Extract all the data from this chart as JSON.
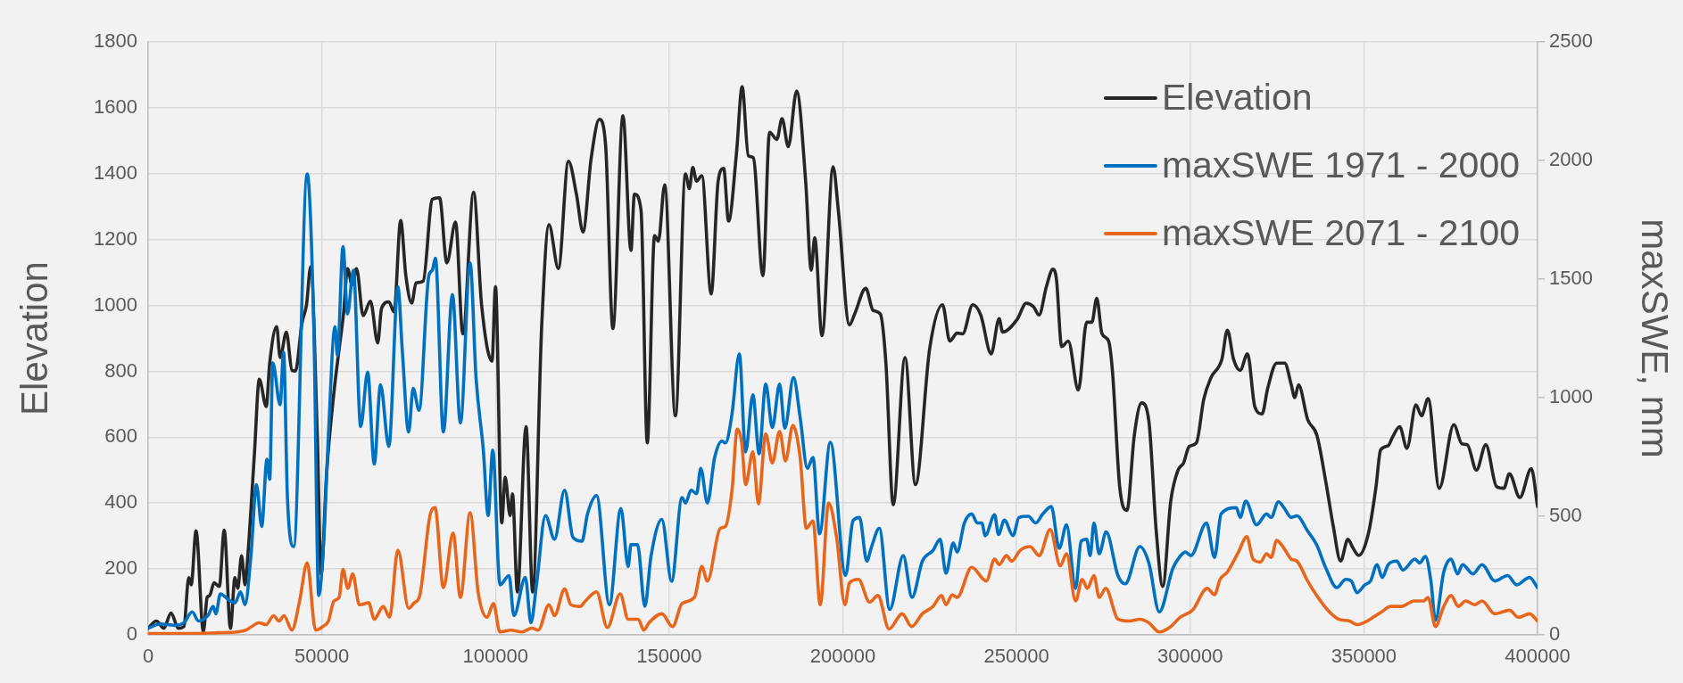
{
  "chart_data": {
    "type": "line",
    "ylabel": "Elevation",
    "y2label": "maxSWE, mm",
    "xlim": [
      0,
      400000
    ],
    "xticks": [
      0,
      50000,
      100000,
      150000,
      200000,
      250000,
      300000,
      350000,
      400000
    ],
    "ylim": [
      0,
      1800
    ],
    "yticks": [
      0,
      200,
      400,
      600,
      800,
      1000,
      1200,
      1400,
      1600,
      1800
    ],
    "y2lim": [
      0,
      2500
    ],
    "y2ticks": [
      0,
      500,
      1000,
      1500,
      2000,
      2500
    ],
    "grid": true,
    "legend": "top right",
    "marker": "none",
    "line_style": "solid",
    "series": [
      {
        "name": "Elevation",
        "color": "#262626",
        "x": [
          0,
          2400,
          4500,
          6600,
          8700,
          10300,
          11700,
          12400,
          13800,
          15900,
          17000,
          17700,
          19000,
          20500,
          21900,
          23700,
          25000,
          25800,
          26900,
          27900,
          28700,
          30600,
          32000,
          34000,
          35000,
          37000,
          38000,
          39800,
          41400,
          42400,
          44300,
          45600,
          46800,
          48700,
          49800,
          51400,
          53500,
          55000,
          56300,
          57400,
          58700,
          60000,
          61900,
          64000,
          66100,
          67200,
          69300,
          70800,
          72700,
          74200,
          75900,
          77100,
          79200,
          81800,
          83900,
          86000,
          88500,
          90600,
          93700,
          96000,
          99000,
          100000,
          101800,
          102800,
          104200,
          104900,
          106300,
          108800,
          110700,
          113300,
          115400,
          118100,
          121000,
          123300,
          125200,
          127500,
          129900,
          131700,
          133800,
          136700,
          139000,
          140000,
          141900,
          143700,
          145800,
          146900,
          148700,
          151800,
          154700,
          155800,
          156800,
          157900,
          159400,
          162100,
          164100,
          165700,
          167100,
          169400,
          171000,
          172800,
          174200,
          177000,
          178900,
          181000,
          182500,
          184300,
          186700,
          189300,
          190900,
          191900,
          194000,
          197200,
          198700,
          201900,
          203400,
          206600,
          208700,
          210800,
          212400,
          214500,
          217900,
          220900,
          225000,
          228700,
          230800,
          232900,
          234500,
          237400,
          239700,
          242700,
          245000,
          246000,
          250200,
          252800,
          254900,
          256500,
          258600,
          260500,
          261500,
          263000,
          264900,
          267800,
          270200,
          271700,
          273100,
          274600,
          276500,
          277600,
          279700,
          281800,
          283900,
          286000,
          288100,
          290200,
          292100,
          294400,
          296500,
          298100,
          299700,
          301800,
          303900,
          306000,
          309100,
          310700,
          312500,
          314400,
          316500,
          318600,
          320700,
          322300,
          324900,
          327200,
          329100,
          330100,
          331200,
          333800,
          336500,
          339100,
          341200,
          343300,
          345400,
          346900,
          348500,
          351400,
          353500,
          354800,
          357000,
          358200,
          360300,
          362400,
          365000,
          366600,
          368500,
          371700,
          375900,
          378200,
          379800,
          382400,
          385100,
          388200,
          390300,
          391900,
          394900,
          398200,
          400000
        ],
        "values": [
          20,
          42,
          20,
          66,
          20,
          25,
          174,
          152,
          316,
          10,
          114,
          119,
          158,
          147,
          318,
          20,
          174,
          141,
          240,
          152,
          240,
          550,
          776,
          693,
          825,
          936,
          842,
          919,
          803,
          801,
          947,
          1002,
          1118,
          605,
          185,
          494,
          737,
          869,
          980,
          1112,
          1063,
          1112,
          969,
          1013,
          886,
          991,
          1011,
          980,
          1258,
          1090,
          1007,
          1068,
          1074,
          1322,
          1327,
          1129,
          1253,
          914,
          1344,
          1002,
          831,
          1057,
          340,
          478,
          362,
          428,
          130,
          632,
          130,
          936,
          1245,
          1112,
          1438,
          1338,
          1223,
          1443,
          1565,
          1487,
          930,
          1576,
          1167,
          1338,
          1289,
          583,
          1212,
          1195,
          1366,
          665,
          1399,
          1355,
          1419,
          1377,
          1394,
          1035,
          1377,
          1416,
          1256,
          1465,
          1664,
          1454,
          1449,
          1090,
          1526,
          1504,
          1567,
          1482,
          1651,
          1377,
          1107,
          1206,
          908,
          1421,
          1289,
          941,
          974,
          1052,
          985,
          974,
          825,
          395,
          842,
          456,
          869,
          1002,
          892,
          916,
          914,
          1002,
          971,
          853,
          960,
          919,
          958,
          1007,
          996,
          971,
          1057,
          1110,
          1079,
          875,
          892,
          743,
          949,
          949,
          1022,
          914,
          892,
          803,
          450,
          378,
          605,
          704,
          649,
          318,
          147,
          406,
          500,
          522,
          572,
          583,
          715,
          781,
          836,
          925,
          836,
          803,
          853,
          693,
          671,
          748,
          825,
          825,
          759,
          720,
          759,
          654,
          605,
          461,
          329,
          224,
          290,
          263,
          241,
          312,
          450,
          561,
          574,
          599,
          632,
          566,
          698,
          665,
          717,
          445,
          638,
          580,
          577,
          500,
          577,
          450,
          445,
          489,
          417,
          505,
          390
        ]
      },
      {
        "name": "maxSWE 1971 - 2000",
        "color": "#0070c0",
        "axis": "y2",
        "x": [
          0,
          3500,
          7700,
          10300,
          12700,
          14500,
          17200,
          18700,
          19500,
          20800,
          23000,
          25000,
          26600,
          27900,
          29600,
          31200,
          32700,
          34200,
          35000,
          35900,
          38000,
          39000,
          40100,
          41900,
          45800,
          47700,
          49100,
          50600,
          51900,
          53800,
          54500,
          56100,
          57400,
          59100,
          61200,
          63200,
          65100,
          66900,
          69300,
          71900,
          73200,
          75000,
          76300,
          78000,
          80800,
          81800,
          82700,
          85000,
          87600,
          89900,
          92700,
          94400,
          96500,
          97900,
          99200,
          101300,
          103900,
          105300,
          108600,
          110200,
          111800,
          114400,
          117000,
          119900,
          122300,
          124900,
          126500,
          129100,
          132800,
          136100,
          138200,
          139000,
          140900,
          143000,
          144800,
          147900,
          150700,
          153700,
          154700,
          156300,
          157900,
          159100,
          161000,
          163100,
          165200,
          166200,
          168100,
          170200,
          172000,
          174100,
          175900,
          177800,
          179700,
          181800,
          183300,
          185800,
          187700,
          189800,
          191400,
          193300,
          196400,
          200800,
          202900,
          204800,
          206900,
          208200,
          210500,
          213500,
          217400,
          219900,
          222900,
          226000,
          228000,
          229700,
          231800,
          232900,
          235000,
          237100,
          238700,
          240000,
          241000,
          243700,
          244800,
          246500,
          249000,
          250700,
          253400,
          255500,
          257600,
          260000,
          262300,
          264400,
          267000,
          268600,
          270200,
          271200,
          272300,
          273800,
          275800,
          279200,
          281300,
          285500,
          288100,
          291100,
          295000,
          296500,
          298600,
          300200,
          304700,
          307000,
          308900,
          313300,
          314400,
          316000,
          319100,
          322000,
          323300,
          325400,
          327000,
          329100,
          330700,
          333800,
          336400,
          339100,
          342200,
          344800,
          346400,
          348000,
          350300,
          351900,
          353800,
          355300,
          357000,
          359500,
          361200,
          364700,
          366100,
          367700,
          369300,
          370600,
          373000,
          375100,
          377000,
          378400,
          381400,
          384000,
          387700,
          391400,
          394000,
          397700,
          400000
        ],
        "values": [
          28,
          46,
          40,
          51,
          97,
          58,
          81,
          120,
          89,
          173,
          150,
          135,
          181,
          127,
          334,
          633,
          457,
          740,
          656,
          1146,
          970,
          1192,
          579,
          372,
          1943,
          1300,
          166,
          411,
          840,
          1300,
          1177,
          1637,
          1353,
          1537,
          878,
          1108,
          720,
          1054,
          794,
          1468,
          1192,
          855,
          1039,
          947,
          1514,
          1537,
          1588,
          855,
          1435,
          893,
          1568,
          1085,
          779,
          503,
          779,
          211,
          250,
          81,
          242,
          51,
          211,
          503,
          403,
          610,
          411,
          395,
          510,
          587,
          127,
          533,
          288,
          380,
          380,
          120,
          334,
          487,
          226,
          579,
          556,
          610,
          595,
          702,
          556,
          748,
          817,
          809,
          932,
          1185,
          771,
          1012,
          763,
          1057,
          874,
          1057,
          871,
          1085,
          917,
          702,
          748,
          426,
          812,
          250,
          480,
          495,
          311,
          368,
          449,
          107,
          334,
          158,
          311,
          357,
          403,
          260,
          388,
          349,
          472,
          510,
          472,
          472,
          418,
          506,
          423,
          484,
          418,
          495,
          500,
          472,
          510,
          541,
          365,
          464,
          196,
          395,
          403,
          334,
          472,
          342,
          434,
          250,
          215,
          372,
          303,
          97,
          280,
          319,
          349,
          334,
          472,
          326,
          510,
          536,
          495,
          564,
          464,
          510,
          495,
          561,
          536,
          495,
          502,
          438,
          380,
          280,
          199,
          234,
          227,
          178,
          211,
          227,
          296,
          242,
          296,
          311,
          273,
          319,
          303,
          331,
          227,
          61,
          265,
          319,
          257,
          296,
          257,
          296,
          227,
          250,
          211,
          242,
          199
        ]
      },
      {
        "name": "maxSWE 2071 - 2100",
        "color": "#e8661c",
        "axis": "y2",
        "x": [
          0,
          11900,
          20300,
          25600,
          28200,
          29800,
          31900,
          34000,
          36100,
          37700,
          39100,
          41400,
          43500,
          45800,
          48200,
          50300,
          51900,
          53500,
          55000,
          56100,
          57500,
          58900,
          60800,
          63500,
          65100,
          67700,
          69500,
          71900,
          75000,
          76600,
          78200,
          81100,
          82600,
          85000,
          87800,
          89900,
          92700,
          95000,
          97600,
          99400,
          101300,
          104400,
          107600,
          110500,
          112300,
          115400,
          117000,
          119900,
          121700,
          124400,
          125900,
          129100,
          132200,
          135900,
          138200,
          141100,
          142700,
          144200,
          147900,
          151000,
          153700,
          157300,
          159400,
          161000,
          164700,
          166200,
          168100,
          169600,
          170900,
          172000,
          174100,
          175700,
          177800,
          179700,
          181800,
          183500,
          185600,
          187700,
          189500,
          191400,
          193500,
          195900,
          198200,
          200600,
          201900,
          204500,
          207700,
          210100,
          213300,
          217100,
          219800,
          222900,
          226000,
          228400,
          229700,
          231500,
          232900,
          237100,
          241300,
          243700,
          245000,
          247100,
          248600,
          251100,
          253900,
          256500,
          259700,
          262600,
          264400,
          267000,
          268900,
          270400,
          272300,
          273800,
          275700,
          279200,
          282400,
          285500,
          288100,
          291100,
          294400,
          297100,
          300700,
          304900,
          307000,
          308600,
          310700,
          313900,
          316300,
          318100,
          320200,
          322000,
          323300,
          324900,
          327000,
          329100,
          330700,
          333800,
          336400,
          339600,
          342700,
          345900,
          348000,
          350000,
          353000,
          355100,
          357700,
          360800,
          364500,
          367200,
          368500,
          370600,
          373000,
          375100,
          377200,
          379300,
          381900,
          384000,
          387700,
          391900,
          394500,
          397700,
          400000
        ],
        "values": [
          5,
          5,
          9,
          12,
          20,
          35,
          51,
          43,
          81,
          58,
          81,
          20,
          135,
          303,
          20,
          35,
          58,
          143,
          158,
          276,
          196,
          257,
          127,
          135,
          66,
          120,
          74,
          357,
          112,
          135,
          166,
          500,
          536,
          199,
          429,
          158,
          515,
          181,
          74,
          132,
          12,
          20,
          12,
          28,
          20,
          127,
          81,
          193,
          127,
          120,
          143,
          181,
          31,
          173,
          66,
          66,
          20,
          51,
          89,
          35,
          132,
          158,
          288,
          227,
          449,
          457,
          610,
          867,
          809,
          633,
          771,
          552,
          848,
          725,
          858,
          733,
          883,
          748,
          449,
          480,
          127,
          556,
          411,
          127,
          219,
          234,
          138,
          166,
          25,
          89,
          35,
          89,
          120,
          166,
          127,
          169,
          158,
          285,
          227,
          319,
          296,
          334,
          311,
          357,
          372,
          334,
          444,
          291,
          342,
          143,
          234,
          196,
          250,
          158,
          196,
          66,
          58,
          66,
          51,
          12,
          35,
          74,
          104,
          196,
          169,
          234,
          265,
          349,
          414,
          319,
          307,
          342,
          326,
          398,
          365,
          319,
          311,
          227,
          166,
          104,
          66,
          58,
          43,
          51,
          77,
          97,
          120,
          120,
          143,
          143,
          158,
          35,
          120,
          166,
          120,
          143,
          127,
          143,
          89,
          104,
          74,
          89,
          58
        ]
      }
    ]
  }
}
